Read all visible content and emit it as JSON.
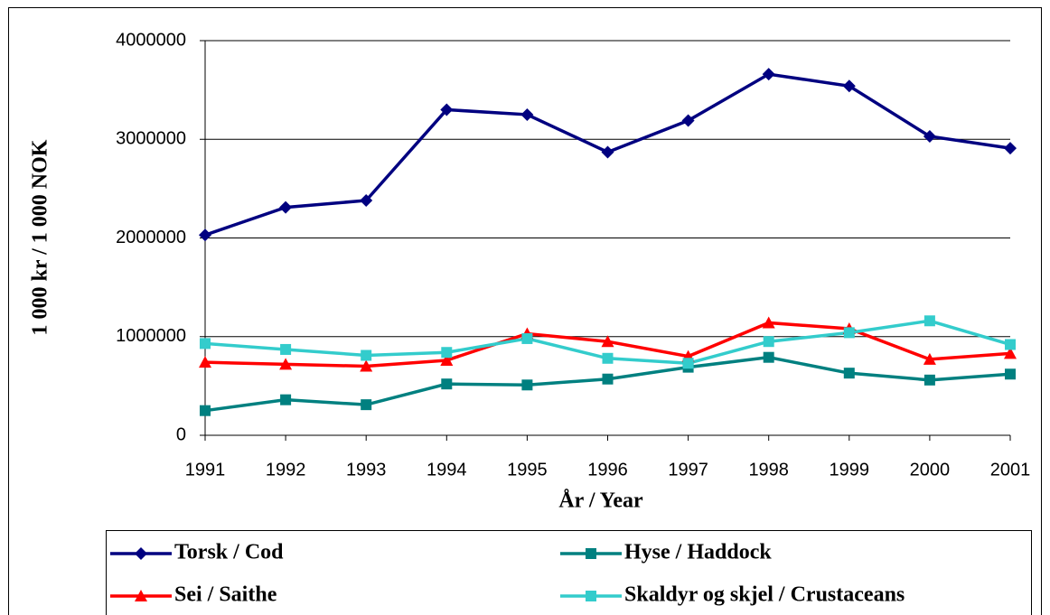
{
  "chart_data": {
    "type": "line",
    "x_label": "År / Year",
    "y_label": "1 000 kr / 1 000 NOK",
    "categories": [
      "1991",
      "1992",
      "1993",
      "1994",
      "1995",
      "1996",
      "1997",
      "1998",
      "1999",
      "2000",
      "2001"
    ],
    "series": [
      {
        "name": "Torsk / Cod",
        "color": "#000080",
        "marker": "diamond",
        "values": [
          2030000,
          2310000,
          2380000,
          3300000,
          3250000,
          2870000,
          3190000,
          3660000,
          3540000,
          3030000,
          2910000
        ]
      },
      {
        "name": "Hyse / Haddock",
        "color": "#008080",
        "marker": "square",
        "values": [
          250000,
          360000,
          310000,
          520000,
          510000,
          570000,
          690000,
          790000,
          630000,
          560000,
          620000
        ]
      },
      {
        "name": "Sei / Saithe",
        "color": "#ff0000",
        "marker": "triangle",
        "values": [
          740000,
          720000,
          700000,
          760000,
          1030000,
          950000,
          800000,
          1140000,
          1080000,
          770000,
          830000
        ]
      },
      {
        "name": "Skaldyr og skjel / Crustaceans",
        "color": "#33cccc",
        "marker": "square",
        "values": [
          930000,
          870000,
          810000,
          840000,
          980000,
          780000,
          730000,
          950000,
          1040000,
          1160000,
          920000
        ]
      }
    ],
    "ylim": [
      0,
      4000000
    ],
    "yticks": [
      0,
      1000000,
      2000000,
      3000000,
      4000000
    ],
    "grid": true,
    "legend": "bottom"
  }
}
